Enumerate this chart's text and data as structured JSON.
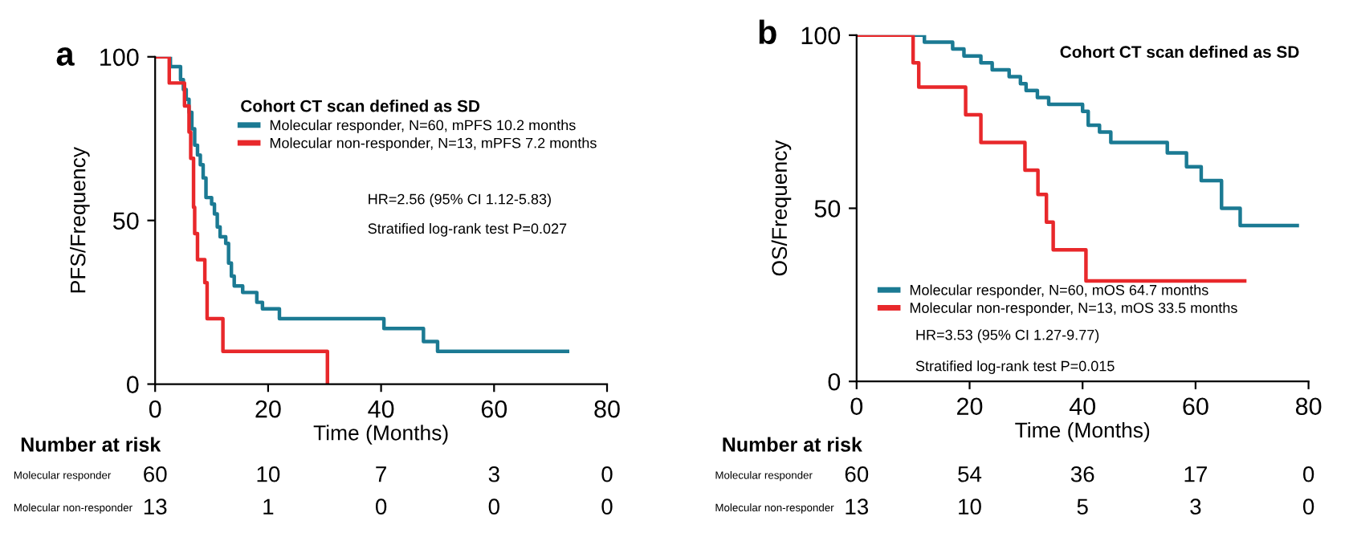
{
  "chart_data": [
    {
      "type": "step",
      "title": "a",
      "xlabel": "Time (Months)",
      "ylabel": "PFS/Frequency",
      "legend_title": "Cohort CT scan defined as SD",
      "legend": "top right",
      "xlim": [
        0,
        80
      ],
      "ylim": [
        0,
        100
      ],
      "xticks": [
        0,
        20,
        40,
        60,
        80
      ],
      "yticks": [
        0,
        50,
        100
      ],
      "grid": false,
      "series": [
        {
          "name": "Molecular responder, N=60, mPFS 10.2 months",
          "color": "#1b7a93",
          "x": [
            0,
            2.7,
            4.5,
            5,
            5.5,
            6,
            6.5,
            7,
            7.5,
            8,
            8.5,
            9,
            10,
            10.5,
            11,
            11.5,
            12.5,
            13,
            13.5,
            14,
            15.5,
            18,
            19,
            22,
            40.5,
            47.5,
            50,
            73
          ],
          "values": [
            100,
            97,
            93,
            90,
            87,
            83,
            78,
            73,
            70,
            67,
            63,
            57,
            55,
            52,
            48,
            45,
            43,
            37,
            33,
            30,
            28,
            25,
            23,
            20,
            17,
            13,
            10,
            10
          ]
        },
        {
          "name": "Molecular non-responder, N=13, mPFS 7.2 months",
          "color": "#e8282b",
          "x": [
            0,
            2.5,
            5.2,
            6,
            6.3,
            6.8,
            7,
            7.5,
            8.8,
            9.2,
            12,
            30.5
          ],
          "values": [
            100,
            92,
            85,
            77,
            69,
            54,
            46,
            38,
            31,
            20,
            10,
            0
          ]
        }
      ],
      "annotations": [
        "HR=2.56 (95% CI 1.12-5.83)",
        "Stratified log-rank test P=0.027",
        "Number at risk",
        "Molecular responder",
        "60 10 7 3 0",
        "Molecular non-responder",
        "13 1 0 0 0"
      ]
    },
    {
      "type": "step",
      "title": "b",
      "xlabel": "Time (Months)",
      "ylabel": "OS/Frequency",
      "legend_title": "Cohort CT scan defined as SD",
      "legend": "bottom",
      "xlim": [
        0,
        80
      ],
      "ylim": [
        0,
        100
      ],
      "xticks": [
        0,
        20,
        40,
        60,
        80
      ],
      "yticks": [
        0,
        50,
        100
      ],
      "grid": false,
      "series": [
        {
          "name": "Molecular responder, N=60, mOS 64.7 months",
          "color": "#1b7a93",
          "x": [
            0,
            12,
            17,
            19,
            22,
            24,
            27,
            29,
            30,
            32,
            34,
            40,
            41,
            43,
            45,
            55,
            58.4,
            61,
            64.6,
            67.9,
            78
          ],
          "values": [
            100,
            98,
            96,
            94,
            92,
            90,
            88,
            86,
            84,
            82,
            80,
            78,
            74,
            72,
            69,
            66,
            62,
            58,
            50,
            45,
            45
          ]
        },
        {
          "name": "Molecular non-responder, N=13, mOS 33.5 months",
          "color": "#e8282b",
          "x": [
            0,
            10,
            11,
            19.3,
            22,
            29.8,
            32.1,
            33.6,
            34.8,
            40.6,
            68.7
          ],
          "values": [
            100,
            92,
            85,
            77,
            69,
            61,
            54,
            46,
            38,
            29,
            29
          ]
        }
      ],
      "annotations": [
        "HR=3.53 (95% CI 1.27-9.77)",
        "Stratified log-rank test P=0.015",
        "Number at risk",
        "Molecular responder",
        "60 54 36 17 0",
        "Molecular non-responder",
        "13 10 5 3 0"
      ]
    }
  ]
}
